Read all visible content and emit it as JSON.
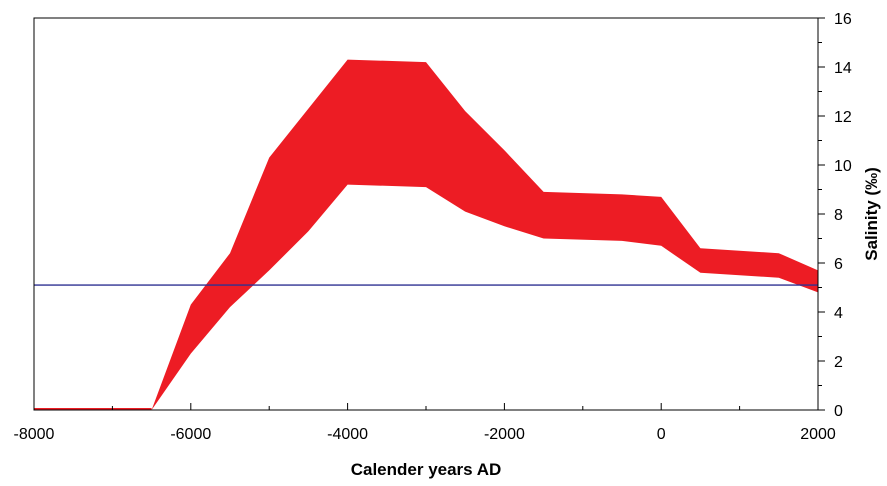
{
  "chart_data": {
    "type": "area",
    "title": "",
    "xlabel": "Calender years AD",
    "ylabel": "Salinity (‰)",
    "xlim": [
      -8000,
      2000
    ],
    "ylim": [
      0,
      16
    ],
    "x_ticks": [
      -8000,
      -6000,
      -4000,
      -2000,
      0,
      2000
    ],
    "x_minor_step": 1000,
    "y_ticks": [
      0,
      2,
      4,
      6,
      8,
      10,
      12,
      14,
      16
    ],
    "y_minor_step": 1,
    "y_axis_side": "right",
    "grid": false,
    "legend": "none",
    "band": {
      "x": [
        -8000,
        -6500,
        -6000,
        -5500,
        -5000,
        -4500,
        -4000,
        -3000,
        -2500,
        -2000,
        -1500,
        -500,
        0,
        500,
        1500,
        2000
      ],
      "upper": [
        0,
        0,
        4.3,
        6.4,
        10.3,
        12.3,
        14.3,
        14.2,
        12.2,
        10.6,
        8.9,
        8.8,
        8.7,
        6.6,
        6.4,
        5.7
      ],
      "lower": [
        0,
        0,
        2.3,
        4.2,
        5.7,
        7.3,
        9.2,
        9.1,
        8.1,
        7.5,
        7.0,
        6.9,
        6.7,
        5.6,
        5.4,
        4.8
      ],
      "color": "#ed1c24"
    },
    "baseline_segment": {
      "x": [
        -8000,
        -6500
      ],
      "y": 0,
      "color": "#ed1c24"
    },
    "reference_line": {
      "y": 5.1,
      "color": "#2e3192"
    }
  }
}
